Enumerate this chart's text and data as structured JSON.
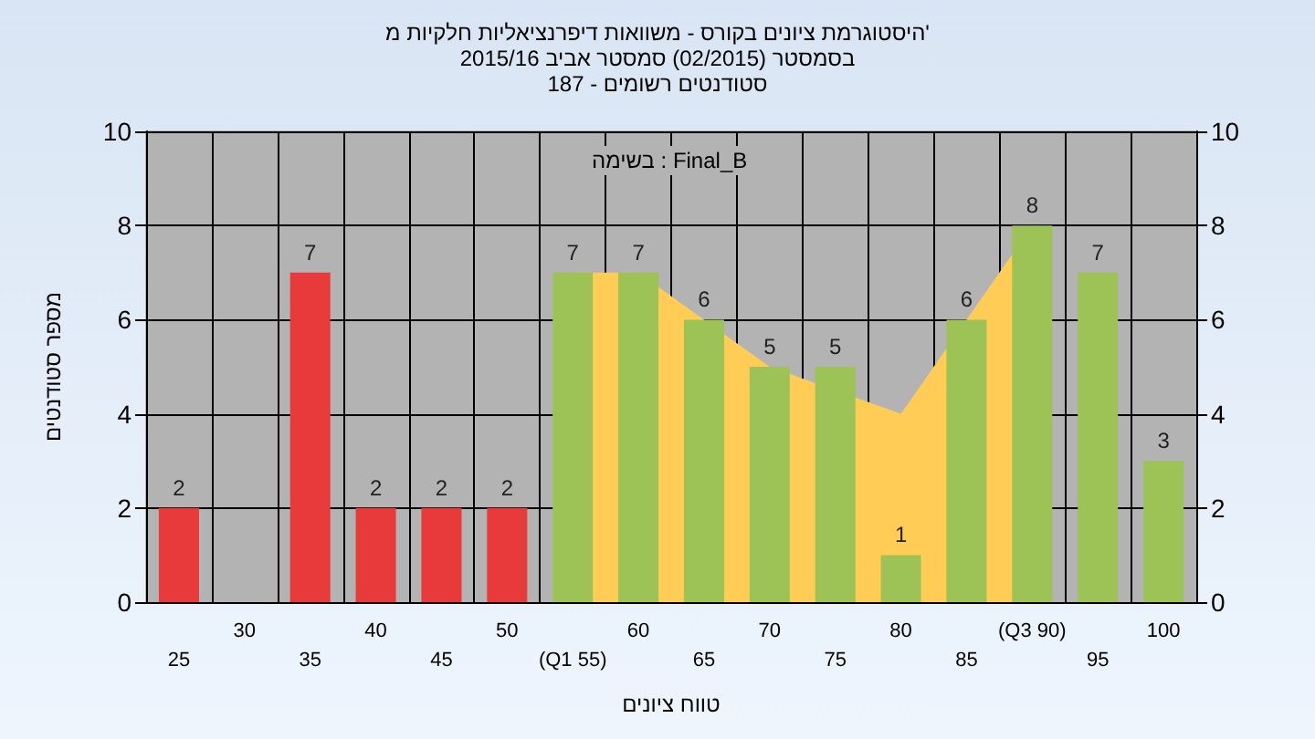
{
  "chart_data": {
    "type": "bar",
    "title": "היסטוגרמת ציונים בקורס - משוואות דיפרנציאליות חלקיות מ'",
    "subtitle": "בסמסטר (02/2015) סמסטר אביב 2015/16\nסטודנטים רשומים - 187",
    "xlabel": "טווח ציונים",
    "ylabel": "מספר סטודנטים",
    "annotations": [
      "בשימה : Final_B"
    ],
    "categories": [
      "25",
      "30",
      "35",
      "40",
      "45",
      "50",
      "(Q1 55)",
      "60",
      "65",
      "70",
      "75",
      "80",
      "85",
      "(Q3 90)",
      "95",
      "100"
    ],
    "series": [
      {
        "type": "area",
        "color": "#ffcc55",
        "values": [
          null,
          null,
          null,
          null,
          null,
          null,
          7,
          7,
          6,
          5,
          null,
          4,
          null,
          8,
          null,
          null
        ]
      },
      {
        "values": [
          2,
          0,
          7,
          2,
          2,
          2,
          7,
          7,
          6,
          5,
          5,
          1,
          6,
          8,
          7,
          3
        ],
        "colors": [
          "#e8393b",
          "#e8393b",
          "#e8393b",
          "#e8393b",
          "#e8393b",
          "#e8393b",
          "#9dc255",
          "#9dc255",
          "#9dc255",
          "#9dc255",
          "#9dc255",
          "#9dc255",
          "#9dc255",
          "#9dc255",
          "#9dc255",
          "#9dc255"
        ],
        "value_labels": [
          "2",
          null,
          "7",
          "2",
          "2",
          "2",
          "7",
          "7",
          "6",
          "5",
          "5",
          "1",
          "6",
          "8",
          "7",
          "3"
        ]
      }
    ],
    "ylim": [
      0,
      10
    ],
    "yticks": [
      0,
      2,
      4,
      6,
      8,
      10
    ],
    "y2lim": [
      0,
      10
    ],
    "y2ticks": [
      0,
      2,
      4,
      6,
      8,
      10
    ],
    "grid": true
  }
}
